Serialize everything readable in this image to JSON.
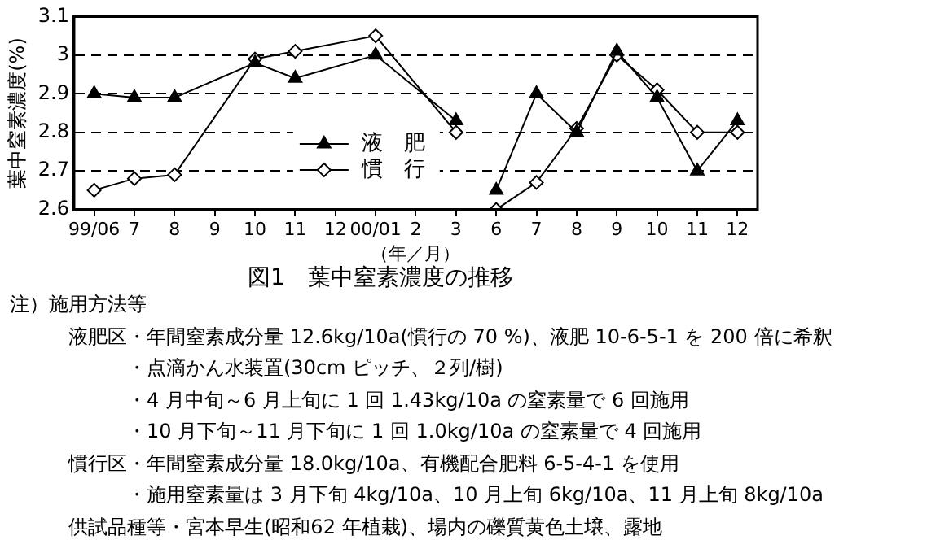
{
  "chart_data": {
    "type": "line",
    "title": "図1　葉中窒素濃度の推移",
    "xlabel": "（年／月）",
    "ylabel": "葉中窒素濃度(%)",
    "categories": [
      "99/06",
      "7",
      "8",
      "9",
      "10",
      "11",
      "12",
      "00/01",
      "2",
      "3",
      "6",
      "7",
      "8",
      "9",
      "10",
      "11",
      "12"
    ],
    "series": [
      {
        "name": "液　肥",
        "color": "#000000",
        "marker": "triangle",
        "values": [
          2.9,
          2.89,
          2.89,
          null,
          2.98,
          2.94,
          null,
          3.0,
          null,
          2.83,
          null,
          null,
          null,
          null,
          null,
          null,
          null
        ]
      },
      {
        "name": "慣　行",
        "color": "#000000",
        "marker": "diamond",
        "values": [
          2.65,
          2.68,
          2.69,
          null,
          2.99,
          3.01,
          null,
          3.05,
          null,
          2.8,
          null,
          null,
          null,
          null,
          null,
          null,
          null
        ]
      },
      {
        "color": "#000000",
        "marker": "triangle",
        "values": [
          null,
          null,
          null,
          null,
          null,
          null,
          null,
          null,
          null,
          null,
          2.65,
          2.9,
          2.8,
          3.01,
          2.89,
          2.7,
          2.83
        ]
      },
      {
        "color": "#000000",
        "marker": "diamond",
        "values": [
          null,
          null,
          null,
          null,
          null,
          null,
          null,
          null,
          null,
          null,
          2.6,
          2.67,
          2.81,
          3.0,
          2.91,
          2.8,
          2.8
        ]
      }
    ],
    "ylim": [
      2.6,
      3.1
    ],
    "yticks": [
      2.6,
      2.7,
      2.8,
      2.9,
      3,
      3.1
    ],
    "grid": "y",
    "legend": "center",
    "line_style": "solid",
    "annotations": [
      "注）施用方法等",
      "　　　液肥区・年間窒素成分量 12.6kg/10a(慣行の 70 %)、液肥 10-6-5-1 を 200 倍に希釈",
      "　　　　　　・点滴かん水装置(30cm ピッチ、２列/樹)",
      "　　　　　　・4 月中旬～6 月上旬に 1 回 1.43kg/10a の窒素量で 6 回施用",
      "　　　　　　・10 月下旬～11 月下旬に 1 回 1.0kg/10a の窒素量で 4 回施用",
      "　　　慣行区・年間窒素成分量 18.0kg/10a、有機配合肥料 6-5-4-1 を使用",
      "　　　　　　・施用窒素量は 3 月下旬 4kg/10a、10 月上旬 6kg/10a、11 月上旬 8kg/10a",
      "　　　供試品種等・宮本早生(昭和62 年植栽)、場内の礫質黄色土壌、露地"
    ]
  }
}
